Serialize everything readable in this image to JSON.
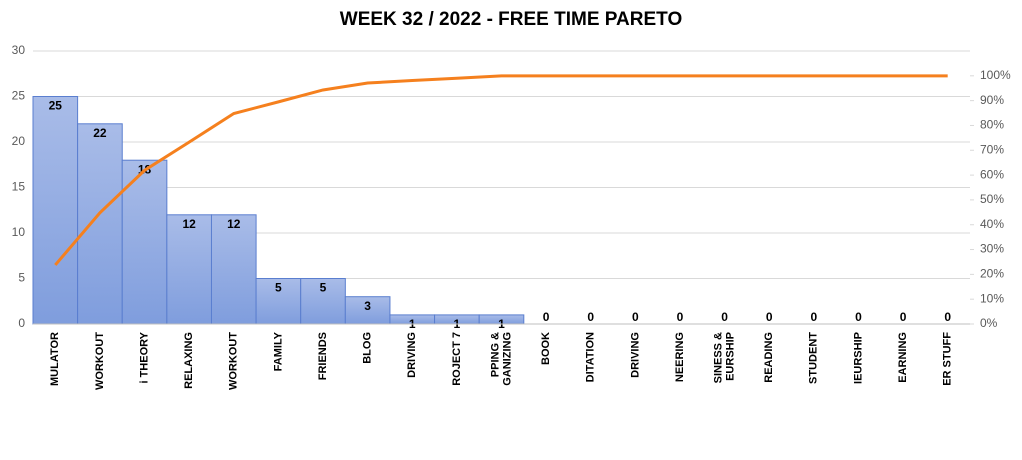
{
  "chart_data": {
    "type": "pareto",
    "title": "WEEK 32 / 2022 - FREE TIME PARETO",
    "categories": [
      "MULATOR",
      "WORKOUT",
      "i THEORY",
      "RELAXING",
      "WORKOUT",
      "FAMILY",
      "FRIENDS",
      "BLOG",
      "DRIVING",
      "ROJECT 7",
      "PPING &\nGANIZING",
      "BOOK",
      "DITATION",
      "DRIVING",
      "NEERING",
      "SINESS &\nEURSHIP",
      "READING",
      "STUDENT",
      "IEURSHIP",
      "EARNING",
      "ER STUFF"
    ],
    "values": [
      25,
      22,
      18,
      12,
      12,
      5,
      5,
      3,
      1,
      1,
      1,
      0,
      0,
      0,
      0,
      0,
      0,
      0,
      0,
      0,
      0
    ],
    "color": "#91a9e2",
    "edge_color": "#5a7ecf",
    "line": {
      "axis": "y2",
      "color": "#f5801e",
      "values": [
        23.8,
        44.8,
        61.9,
        73.3,
        84.8,
        89.5,
        94.3,
        97.1,
        98.1,
        99.0,
        100,
        100,
        100,
        100,
        100,
        100,
        100,
        100,
        100,
        100,
        100
      ]
    },
    "ylim": [
      0,
      30
    ],
    "yticks": [
      0,
      5,
      10,
      15,
      20,
      25,
      30
    ],
    "y2lim": [
      0,
      110
    ],
    "y2ticks": [
      {
        "value": 0,
        "label": "0%"
      },
      {
        "value": 10,
        "label": "10%"
      },
      {
        "value": 20,
        "label": "20%"
      },
      {
        "value": 30,
        "label": "30%"
      },
      {
        "value": 40,
        "label": "40%"
      },
      {
        "value": 50,
        "label": "50%"
      },
      {
        "value": 60,
        "label": "60%"
      },
      {
        "value": 70,
        "label": "70%"
      },
      {
        "value": 80,
        "label": "80%"
      },
      {
        "value": 90,
        "label": "90%"
      },
      {
        "value": 100,
        "label": "100%"
      }
    ],
    "grid": true
  }
}
